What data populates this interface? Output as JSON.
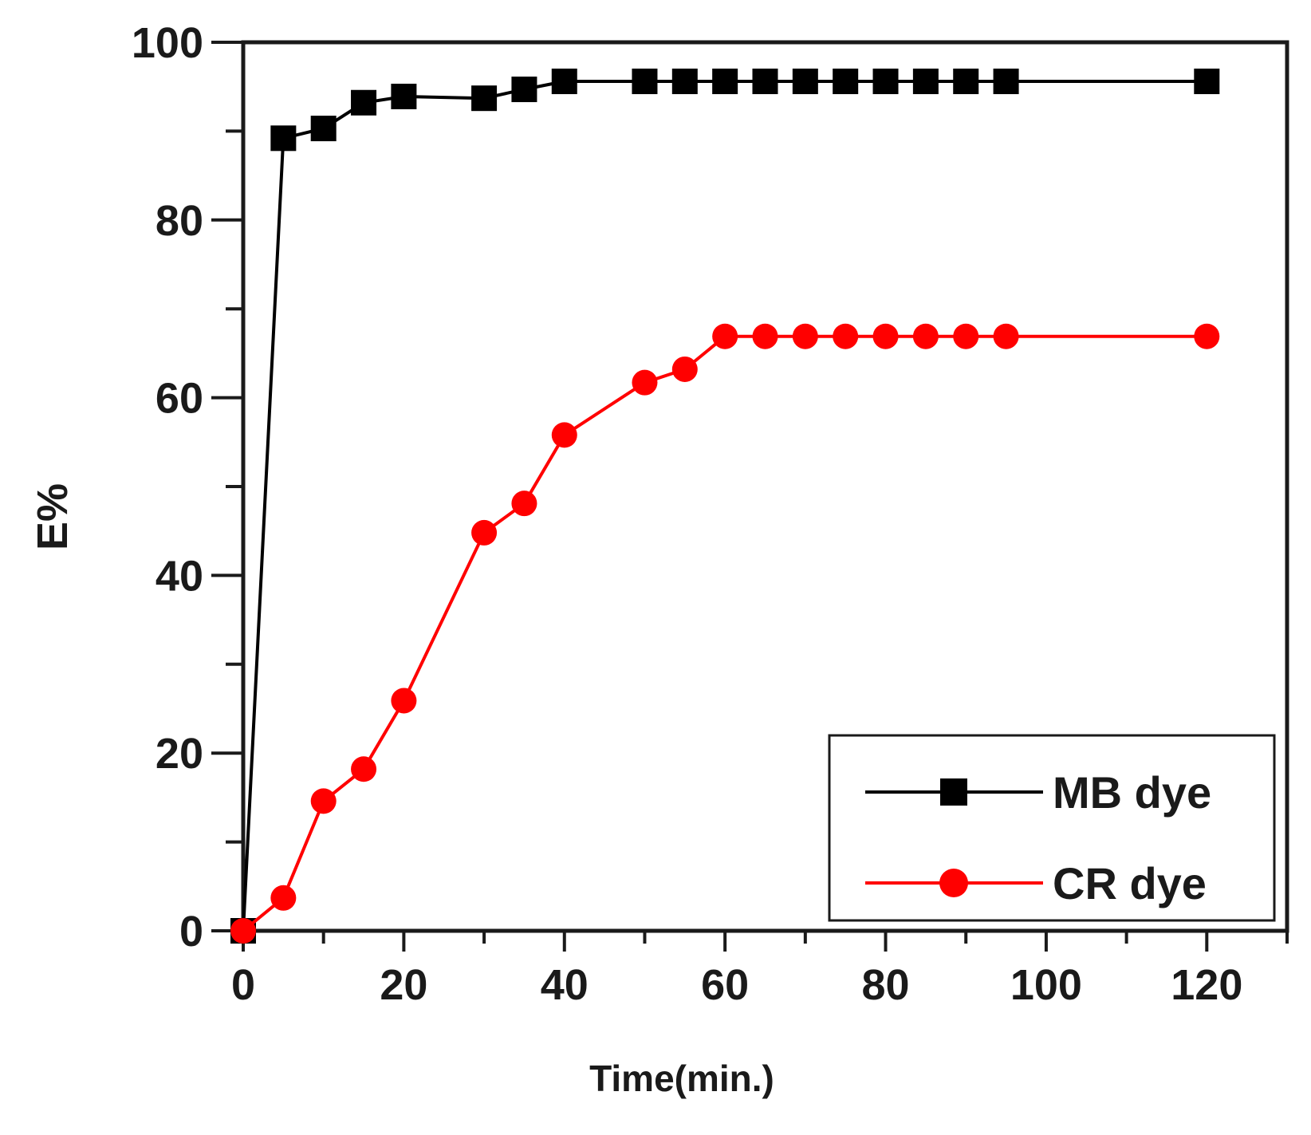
{
  "chart_data": {
    "type": "line",
    "title": "",
    "xlabel": "Time(min.)",
    "ylabel": "E%",
    "xlim": [
      0,
      130
    ],
    "ylim": [
      0,
      100
    ],
    "x_ticks": [
      0,
      20,
      40,
      60,
      80,
      100,
      120
    ],
    "y_ticks": [
      0,
      20,
      40,
      60,
      80,
      100
    ],
    "grid": false,
    "legend_position": "bottom-right",
    "series": [
      {
        "name": "MB dye",
        "color": "#000000",
        "marker": "square",
        "x": [
          0,
          5,
          10,
          15,
          20,
          30,
          35,
          40,
          50,
          55,
          60,
          65,
          70,
          75,
          80,
          85,
          90,
          95,
          120
        ],
        "y": [
          0,
          89.2,
          90.3,
          93.2,
          93.9,
          93.7,
          94.7,
          95.6,
          95.6,
          95.6,
          95.6,
          95.6,
          95.6,
          95.6,
          95.6,
          95.6,
          95.6,
          95.6,
          95.6
        ]
      },
      {
        "name": "CR dye",
        "color": "#ff0000",
        "marker": "circle",
        "x": [
          0,
          5,
          10,
          15,
          20,
          30,
          35,
          40,
          50,
          55,
          60,
          65,
          70,
          75,
          80,
          85,
          90,
          95,
          120
        ],
        "y": [
          0,
          3.7,
          14.6,
          18.2,
          25.9,
          44.8,
          48.1,
          55.8,
          61.7,
          63.2,
          66.9,
          66.9,
          66.9,
          66.9,
          66.9,
          66.9,
          66.9,
          66.9,
          66.9
        ]
      }
    ]
  }
}
